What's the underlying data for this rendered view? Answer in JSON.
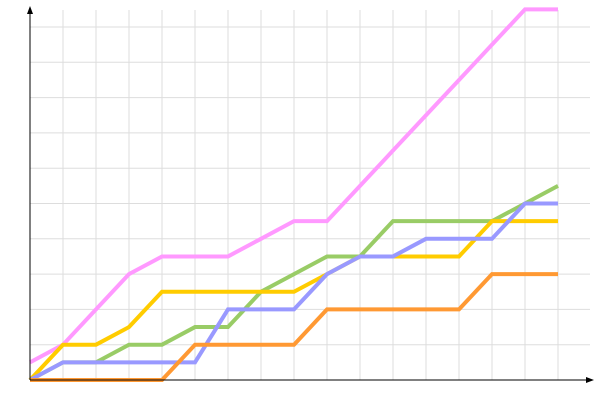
{
  "chart_data": {
    "type": "line",
    "title": "",
    "xlabel": "",
    "ylabel": "",
    "x": [
      0,
      1,
      2,
      3,
      4,
      5,
      6,
      7,
      8,
      9,
      10,
      11,
      12,
      13,
      14,
      15,
      16
    ],
    "xlim": [
      0,
      17
    ],
    "ylim": [
      0,
      10.5
    ],
    "grid": true,
    "legend": "none",
    "series": [
      {
        "color": "#ff99ff",
        "values": [
          0.5,
          1,
          2,
          3,
          3.5,
          3.5,
          3.5,
          4,
          4.5,
          4.5,
          5.5,
          6.5,
          7.5,
          8.5,
          9.5,
          10.5,
          10.5
        ]
      },
      {
        "color": "#99cc66",
        "values": [
          0,
          0.5,
          0.5,
          1,
          1,
          1.5,
          1.5,
          2.5,
          3,
          3.5,
          3.5,
          4.5,
          4.5,
          4.5,
          4.5,
          5,
          5.5
        ]
      },
      {
        "color": "#ffcc00",
        "values": [
          0,
          1,
          1,
          1.5,
          2.5,
          2.5,
          2.5,
          2.5,
          2.5,
          3,
          3.5,
          3.5,
          3.5,
          3.5,
          4.5,
          4.5,
          4.5
        ]
      },
      {
        "color": "#9999ff",
        "values": [
          0,
          0.5,
          0.5,
          0.5,
          0.5,
          0.5,
          2,
          2,
          2,
          3,
          3.5,
          3.5,
          4,
          4,
          4,
          5,
          5
        ]
      },
      {
        "color": "#ff9933",
        "values": [
          0,
          0,
          0,
          0,
          0,
          1,
          1,
          1,
          1,
          2,
          2,
          2,
          2,
          2,
          3,
          3,
          3
        ]
      }
    ]
  }
}
